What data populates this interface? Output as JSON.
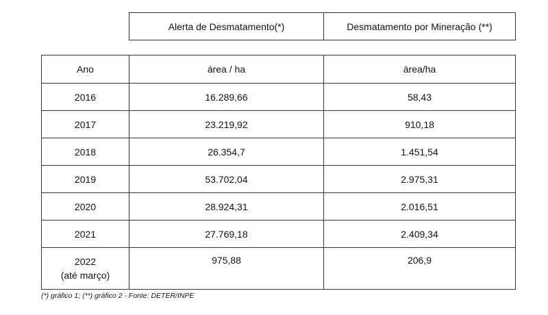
{
  "column_groups": [
    "Alerta de Desmatamento(*)",
    "Desmatamento por Mineração (**)"
  ],
  "table": {
    "header": [
      "Ano",
      "área / ha",
      "área/ha"
    ],
    "rows": [
      [
        "2016",
        "16.289,66",
        "58,43"
      ],
      [
        "2017",
        "23.219,92",
        "910,18"
      ],
      [
        "2018",
        "26.354,7",
        "1.451,54"
      ],
      [
        "2019",
        "53.702,04",
        "2.975,31"
      ],
      [
        "2020",
        "28.924,31",
        "2.016,51"
      ],
      [
        "2021",
        "27.769,18",
        "2.409,34"
      ],
      [
        "2022\n(até março)",
        "975,88",
        "206,9"
      ]
    ]
  },
  "footnote": "(*) gráfico 1; (**) gráfico 2 - Fonte: DETER/INPE"
}
